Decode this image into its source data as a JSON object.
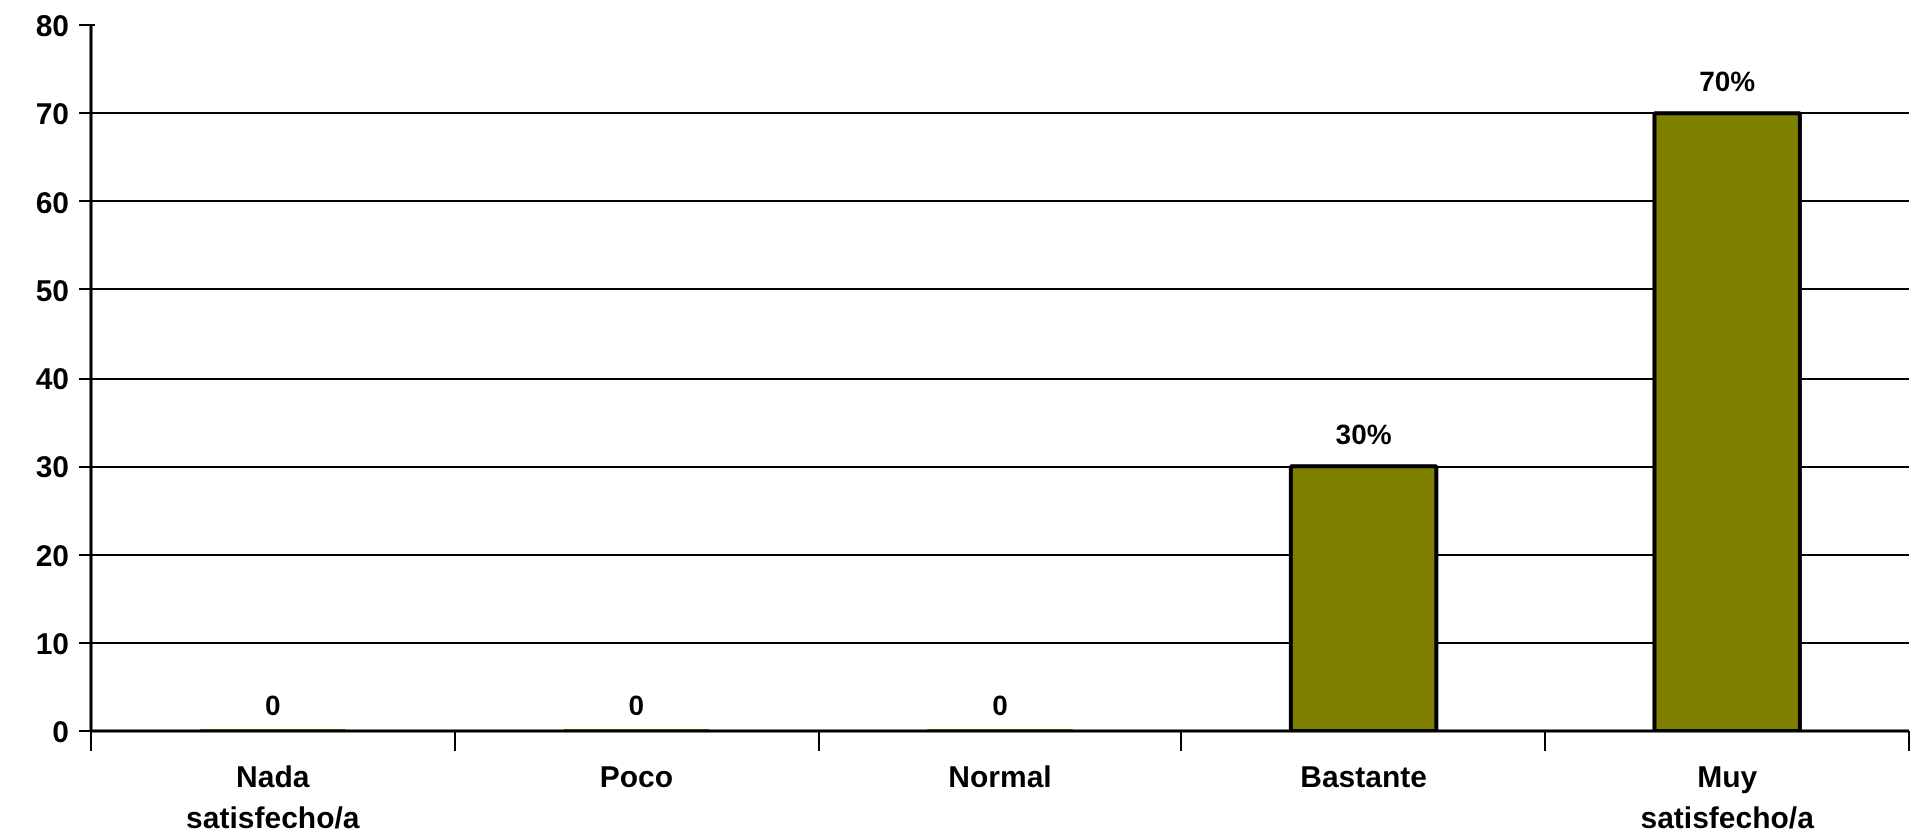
{
  "chart_data": {
    "type": "bar",
    "categories": [
      "Nada satisfecho/a",
      "Poco",
      "Normal",
      "Bastante",
      "Muy satisfecho/a"
    ],
    "values": [
      0,
      0,
      0,
      30,
      70
    ],
    "value_labels": [
      "0",
      "0",
      "0",
      "30%",
      "70%"
    ],
    "color": "#808000",
    "ylim": [
      0,
      80
    ],
    "yticks": [
      0,
      10,
      20,
      30,
      40,
      50,
      60,
      70,
      80
    ],
    "grid": "y"
  }
}
